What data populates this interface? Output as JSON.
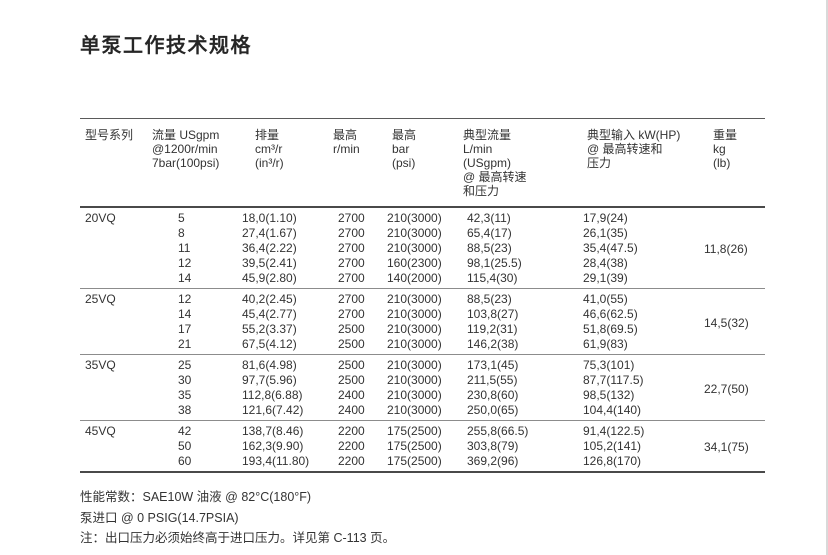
{
  "page": {
    "title": "单泵工作技术规格"
  },
  "table": {
    "columns": [
      {
        "id": "series",
        "lines": [
          "型号系列"
        ]
      },
      {
        "id": "flow",
        "lines": [
          "流量 USgpm",
          "@1200r/min",
          "7bar(100psi)"
        ]
      },
      {
        "id": "displacement",
        "lines": [
          "排量",
          "cm³/r",
          "(in³/r)"
        ]
      },
      {
        "id": "max-speed",
        "lines": [
          "最高",
          "r/min"
        ]
      },
      {
        "id": "max-pressure",
        "lines": [
          "最高",
          "bar",
          "(psi)"
        ]
      },
      {
        "id": "typical-flow",
        "lines": [
          "典型流量",
          "L/min",
          "(USgpm)",
          "@ 最高转速",
          "和压力"
        ]
      },
      {
        "id": "typical-input",
        "lines": [
          "典型输入 kW(HP)",
          "@ 最高转速和",
          "压力"
        ]
      },
      {
        "id": "weight",
        "lines": [
          "重量",
          "kg",
          "(lb)"
        ]
      }
    ],
    "groups": [
      {
        "series": "20VQ",
        "weight": "11,8(26)",
        "rows": [
          [
            "5",
            "18,0(1.10)",
            "2700",
            "210(3000)",
            "42,3(11)",
            "17,9(24)"
          ],
          [
            "8",
            "27,4(1.67)",
            "2700",
            "210(3000)",
            "65,4(17)",
            "26,1(35)"
          ],
          [
            "11",
            "36,4(2.22)",
            "2700",
            "210(3000)",
            "88,5(23)",
            "35,4(47.5)"
          ],
          [
            "12",
            "39,5(2.41)",
            "2700",
            "160(2300)",
            "98,1(25.5)",
            "28,4(38)"
          ],
          [
            "14",
            "45,9(2.80)",
            "2700",
            "140(2000)",
            "115,4(30)",
            "29,1(39)"
          ]
        ]
      },
      {
        "series": "25VQ",
        "weight": "14,5(32)",
        "rows": [
          [
            "12",
            "40,2(2.45)",
            "2700",
            "210(3000)",
            "88,5(23)",
            "41,0(55)"
          ],
          [
            "14",
            "45,4(2.77)",
            "2700",
            "210(3000)",
            "103,8(27)",
            "46,6(62.5)"
          ],
          [
            "17",
            "55,2(3.37)",
            "2500",
            "210(3000)",
            "119,2(31)",
            "51,8(69.5)"
          ],
          [
            "21",
            "67,5(4.12)",
            "2500",
            "210(3000)",
            "146,2(38)",
            "61,9(83)"
          ]
        ]
      },
      {
        "series": "35VQ",
        "weight": "22,7(50)",
        "rows": [
          [
            "25",
            "81,6(4.98)",
            "2500",
            "210(3000)",
            "173,1(45)",
            "75,3(101)"
          ],
          [
            "30",
            "97,7(5.96)",
            "2500",
            "210(3000)",
            "211,5(55)",
            "87,7(117.5)"
          ],
          [
            "35",
            "112,8(6.88)",
            "2400",
            "210(3000)",
            "230,8(60)",
            "98,5(132)"
          ],
          [
            "38",
            "121,6(7.42)",
            "2400",
            "210(3000)",
            "250,0(65)",
            "104,4(140)"
          ]
        ]
      },
      {
        "series": "45VQ",
        "weight": "34,1(75)",
        "rows": [
          [
            "42",
            "138,7(8.46)",
            "2200",
            "175(2500)",
            "255,8(66.5)",
            "91,4(122.5)"
          ],
          [
            "50",
            "162,3(9.90)",
            "2200",
            "175(2500)",
            "303,8(79)",
            "105,2(141)"
          ],
          [
            "60",
            "193,4(11.80)",
            "2200",
            "175(2500)",
            "369,2(96)",
            "126,8(170)"
          ]
        ]
      }
    ]
  },
  "notes": [
    "性能常数：SAE10W 油液 @ 82°C(180°F)",
    "泵进口 @ 0 PSIG(14.7PSIA)",
    "注：出口压力必须始终高于进口压力。详见第 C-113 页。"
  ],
  "colors": {
    "text": "#2f2f2f",
    "rule_dark": "#4a4a4a",
    "rule_light": "#8c8c8c",
    "page_edge": "#d9d9d9"
  }
}
